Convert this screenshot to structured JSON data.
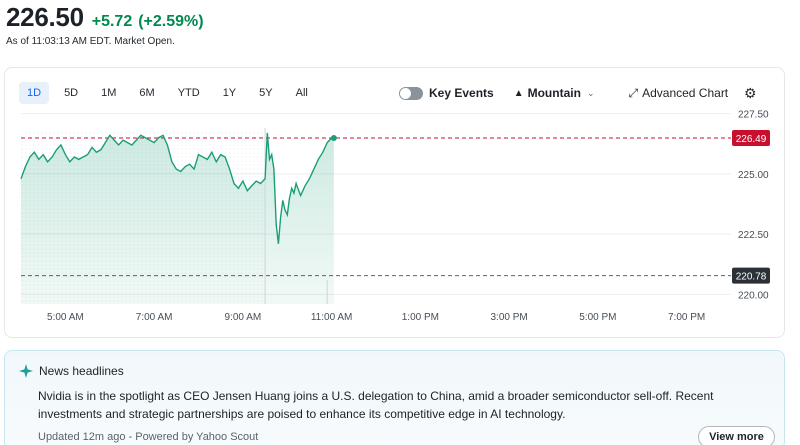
{
  "quote": {
    "price": "226.50",
    "change": "+5.72",
    "change_pct": "(+2.59%)",
    "as_of": "As of 11:03:13 AM EDT. Market Open.",
    "up_color": "#008a4f"
  },
  "ranges": [
    "1D",
    "5D",
    "1M",
    "6M",
    "YTD",
    "1Y",
    "5Y",
    "All"
  ],
  "active_range": "1D",
  "toolbar": {
    "key_events_label": "Key Events",
    "key_events_on": false,
    "chart_type_label": "Mountain",
    "advanced_chart_label": "Advanced Chart",
    "icons": [
      "toggle-icon",
      "mountain-icon",
      "chevron-down-icon",
      "expand-arrow-icon",
      "gear-icon"
    ]
  },
  "chart_data": {
    "type": "area",
    "x_tick_labels": [
      "5:00 AM",
      "7:00 AM",
      "9:00 AM",
      "11:00 AM",
      "1:00 PM",
      "3:00 PM",
      "5:00 PM",
      "7:00 PM"
    ],
    "x_ticks_hours": [
      5,
      7,
      9,
      11,
      13,
      15,
      17,
      19
    ],
    "x_range_hours": [
      4,
      20
    ],
    "y_tick_labels": [
      "227.50",
      "225.00",
      "222.50",
      "220.00"
    ],
    "y_ticks": [
      227.5,
      225.0,
      222.5,
      220.0
    ],
    "ylim": [
      219.6,
      227.9
    ],
    "last_price_label": "226.49",
    "last_price": 226.49,
    "previous_close_label": "220.78",
    "previous_close": 220.78,
    "market_open_hour": 9.5,
    "line_color": "#1b9e77",
    "last_price_color": "#c8102e",
    "previous_close_color": "#2c3137",
    "series": [
      {
        "x": [
          4.0,
          4.1,
          4.2,
          4.3,
          4.4,
          4.5,
          4.6,
          4.7,
          4.8,
          4.9,
          5.0,
          5.1,
          5.2,
          5.3,
          5.4,
          5.5,
          5.6,
          5.7,
          5.8,
          5.9,
          6.0,
          6.1,
          6.2,
          6.3,
          6.4,
          6.5,
          6.6,
          6.7,
          6.8,
          6.9,
          7.0,
          7.1,
          7.2,
          7.3,
          7.4,
          7.5,
          7.6,
          7.7,
          7.8,
          7.9,
          8.0,
          8.1,
          8.2,
          8.3,
          8.4,
          8.5,
          8.6,
          8.7,
          8.8,
          8.9,
          9.0,
          9.1,
          9.2,
          9.3,
          9.4,
          9.5,
          9.55,
          9.6,
          9.65,
          9.7,
          9.75,
          9.8,
          9.85,
          9.9,
          9.95,
          10.0,
          10.05,
          10.1,
          10.15,
          10.2,
          10.3,
          10.4,
          10.5,
          10.6,
          10.7,
          10.8,
          10.9,
          11.0,
          11.05
        ],
        "y": [
          224.8,
          225.3,
          225.7,
          225.9,
          225.6,
          225.8,
          225.5,
          225.7,
          226.0,
          226.2,
          225.8,
          225.5,
          225.7,
          225.6,
          225.7,
          225.8,
          226.1,
          225.9,
          226.0,
          226.3,
          226.6,
          226.4,
          226.2,
          226.4,
          226.3,
          226.2,
          226.4,
          226.6,
          226.5,
          226.4,
          226.3,
          226.5,
          226.6,
          226.2,
          225.5,
          225.2,
          225.1,
          225.3,
          225.4,
          225.2,
          225.8,
          225.7,
          225.6,
          225.9,
          225.5,
          225.8,
          225.7,
          225.2,
          224.6,
          224.4,
          224.7,
          224.3,
          224.5,
          224.7,
          224.6,
          224.8,
          226.7,
          225.6,
          225.8,
          225.2,
          222.9,
          222.1,
          223.2,
          223.9,
          223.5,
          223.3,
          224.0,
          224.4,
          224.2,
          224.6,
          224.1,
          224.5,
          224.8,
          225.2,
          225.6,
          225.9,
          226.3,
          226.49,
          226.49
        ]
      }
    ]
  },
  "news": {
    "title": "News headlines",
    "body": "Nvidia is in the spotlight as CEO Jensen Huang joins a U.S. delegation to China, amid a broader semiconductor sell-off. Recent investments and strategic partnerships are poised to enhance its competitive edge in AI technology.",
    "footer": "Updated 12m ago - Powered by Yahoo Scout",
    "view_more_label": "View more",
    "accent_color": "#1f9e9a"
  }
}
